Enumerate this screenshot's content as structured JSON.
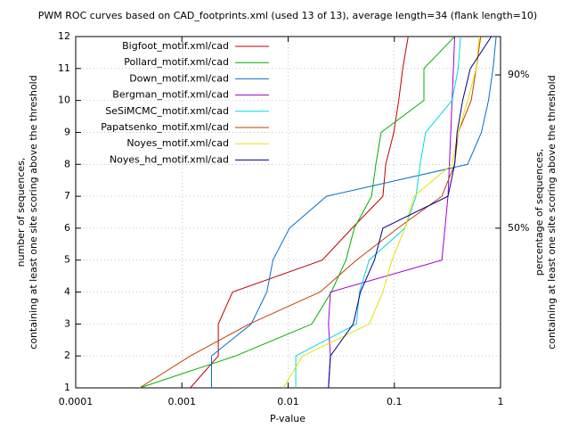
{
  "chart_data": {
    "type": "line",
    "title": "PWM ROC curves based on CAD_footprints.xml (used 13 of 13), average length=34 (flank length=10)",
    "xlabel": "P-value",
    "ylabel": [
      "number of sequences,",
      "containing at least one site scoring above the threshold"
    ],
    "y2label": [
      "percentage of sequences,",
      "containing at least one site scoring above the threshold"
    ],
    "xscale": "log",
    "grid": true,
    "legend": "top-left",
    "xlim": [
      0.0001,
      1
    ],
    "xticks": [
      0.0001,
      0.001,
      0.01,
      0.1,
      1
    ],
    "ylim": [
      1,
      12
    ],
    "yticks": [
      1,
      2,
      3,
      4,
      5,
      6,
      7,
      8,
      9,
      10,
      11,
      12
    ],
    "y2lim": [
      8.33,
      100
    ],
    "y2ticks": [
      {
        "value": 90,
        "label": "90%"
      },
      {
        "value": 50,
        "label": "50%"
      }
    ],
    "series": [
      {
        "name": "Bigfoot_motif.xml/cad",
        "color": "#c00000",
        "x": [
          0.0012,
          0.0022,
          0.0022,
          0.003,
          0.021,
          0.04,
          0.078,
          0.083,
          0.099,
          0.11,
          0.12,
          0.135
        ],
        "values": [
          1,
          2,
          3,
          4,
          5,
          6,
          7,
          8,
          9,
          10,
          11,
          12
        ]
      },
      {
        "name": "Pollard_motif.xml/cad",
        "color": "#00b000",
        "x": [
          0.0004,
          0.0032,
          0.0167,
          0.0255,
          0.035,
          0.042,
          0.061,
          0.067,
          0.075,
          0.19,
          0.19,
          0.37
        ],
        "values": [
          1,
          2,
          3,
          4,
          5,
          6,
          7,
          8,
          9,
          10,
          11,
          12
        ]
      },
      {
        "name": "Down_motif.xml/cad",
        "color": "#0070d0",
        "x": [
          0.0019,
          0.0019,
          0.0045,
          0.0063,
          0.0072,
          0.0103,
          0.023,
          0.49,
          0.66,
          0.77,
          0.85,
          0.91
        ],
        "values": [
          1,
          2,
          3,
          4,
          5,
          6,
          7,
          8,
          9,
          10,
          11,
          12
        ]
      },
      {
        "name": "Bergman_motif.xml/cad",
        "color": "#a000d0",
        "x": [
          0.024,
          0.025,
          0.024,
          0.025,
          0.28,
          0.3,
          0.32,
          0.33,
          0.34,
          0.35,
          0.36,
          0.37
        ],
        "values": [
          1,
          2,
          3,
          4,
          5,
          6,
          7,
          8,
          9,
          10,
          11,
          12
        ]
      },
      {
        "name": "SeSiMCMC_motif.xml/cad",
        "color": "#00d8e0",
        "x": [
          0.0118,
          0.0118,
          0.044,
          0.047,
          0.058,
          0.126,
          0.16,
          0.175,
          0.197,
          0.35,
          0.4,
          0.42
        ],
        "values": [
          1,
          2,
          3,
          4,
          5,
          6,
          7,
          8,
          9,
          10,
          11,
          12
        ]
      },
      {
        "name": "Papatsenko_motif.xml/cad",
        "color": "#c04000",
        "x": [
          0.0004,
          0.0012,
          0.0043,
          0.02,
          0.044,
          0.108,
          0.28,
          0.37,
          0.4,
          0.53,
          0.59,
          0.65
        ],
        "values": [
          1,
          2,
          3,
          4,
          5,
          6,
          7,
          8,
          9,
          10,
          11,
          12
        ]
      },
      {
        "name": "Noyes_motif.xml/cad",
        "color": "#e8e000",
        "x": [
          0.009,
          0.0137,
          0.058,
          0.078,
          0.095,
          0.126,
          0.153,
          0.35,
          0.4,
          0.49,
          0.59,
          0.63
        ],
        "values": [
          1,
          2,
          3,
          4,
          5,
          6,
          7,
          8,
          9,
          10,
          11,
          12
        ]
      },
      {
        "name": "Noyes_hd_motif.xml/cad",
        "color": "#000090",
        "x": [
          0.024,
          0.025,
          0.041,
          0.048,
          0.065,
          0.078,
          0.32,
          0.37,
          0.39,
          0.44,
          0.52,
          0.82
        ],
        "values": [
          1,
          2,
          3,
          4,
          5,
          6,
          7,
          8,
          9,
          10,
          11,
          12
        ]
      }
    ]
  }
}
